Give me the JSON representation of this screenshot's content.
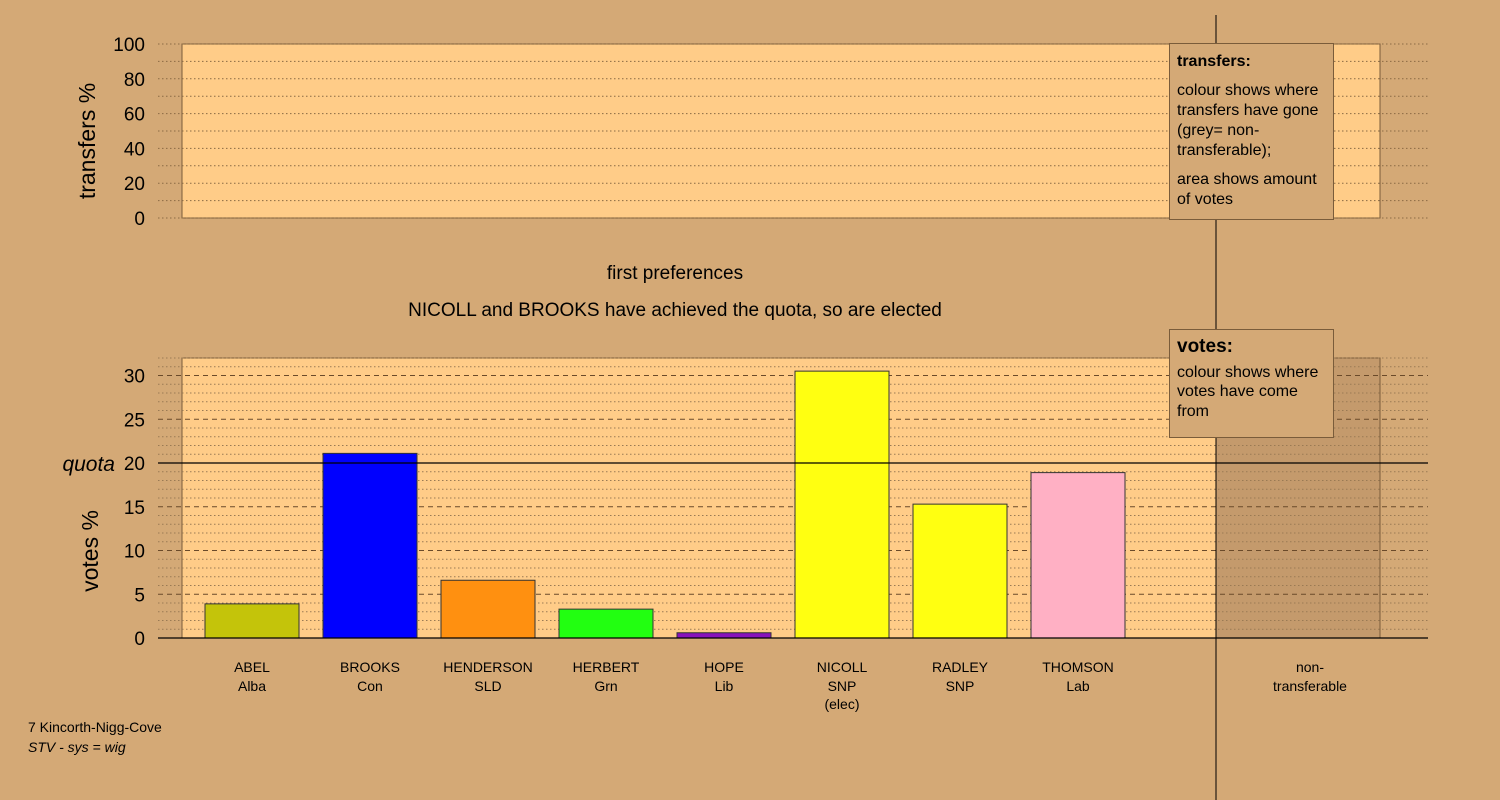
{
  "titles": {
    "stage": "first preferences",
    "message": "NICOLL and BROOKS have achieved the quota, so are elected"
  },
  "legends": {
    "transfers": {
      "title": "transfers:",
      "line1": "colour shows where transfers have gone (grey= non-transferable);",
      "line2": "area shows amount of votes"
    },
    "votes": {
      "title": "votes:",
      "line1": "colour shows where votes have come from"
    }
  },
  "footer": {
    "constituency": "7 Kincorth-Nigg-Cove",
    "system": "STV - sys = wig"
  },
  "colors": {
    "background": "#d4a976",
    "plot_area": "#ffcc88",
    "non_transferable_area": "#c49a6c"
  },
  "chart_data": [
    {
      "type": "bar",
      "panel": "transfers",
      "ylabel": "transfers %",
      "ylim": [
        0,
        100
      ],
      "yticks": [
        0,
        20,
        40,
        60,
        80,
        100
      ],
      "series": []
    },
    {
      "type": "bar",
      "panel": "votes",
      "ylabel": "votes %",
      "ylim": [
        0,
        32
      ],
      "yticks": [
        0,
        5,
        10,
        15,
        20,
        25,
        30
      ],
      "quota_label": "quota",
      "quota": 20,
      "grid": true,
      "categories": [
        {
          "name": "ABEL",
          "party": "Alba",
          "note": "",
          "value": 3.9,
          "color": "#c4c40a"
        },
        {
          "name": "BROOKS",
          "party": "Con",
          "note": "",
          "value": 21.1,
          "color": "#0000ff"
        },
        {
          "name": "HENDERSON",
          "party": "SLD",
          "note": "",
          "value": 6.6,
          "color": "#ff9010"
        },
        {
          "name": "HERBERT",
          "party": "Grn",
          "note": "",
          "value": 3.3,
          "color": "#22ff11"
        },
        {
          "name": "HOPE",
          "party": "Lib",
          "note": "",
          "value": 0.6,
          "color": "#8811bb"
        },
        {
          "name": "NICOLL",
          "party": "SNP",
          "note": "(elec)",
          "value": 30.5,
          "color": "#ffff11"
        },
        {
          "name": "RADLEY",
          "party": "SNP",
          "note": "",
          "value": 15.3,
          "color": "#ffff11"
        },
        {
          "name": "THOMSON",
          "party": "Lab",
          "note": "",
          "value": 18.9,
          "color": "#ffb0c4"
        }
      ],
      "non_transferable": {
        "line1": "non-",
        "line2": "transferable",
        "value": 0
      }
    }
  ]
}
